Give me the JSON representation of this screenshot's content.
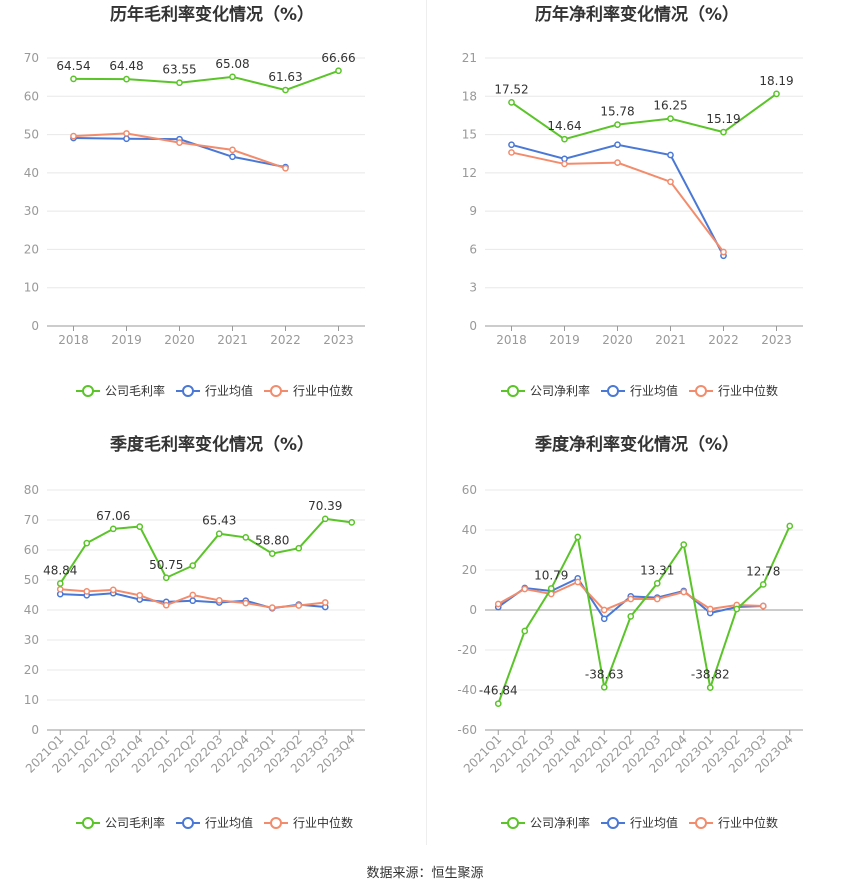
{
  "colors": {
    "company": "#5ac429",
    "industry_avg": "#4a78d6",
    "industry_median": "#f28c6c",
    "grid": "#e8e8e8",
    "axis": "#999999"
  },
  "legend_labels": {
    "company_gross": "公司毛利率",
    "company_net": "公司净利率",
    "industry_avg": "行业均值",
    "industry_median": "行业中位数"
  },
  "source_text": "数据来源：恒生聚源",
  "chart_data": [
    {
      "type": "line",
      "title": "历年毛利率变化情况（%）",
      "x": [
        "2018",
        "2019",
        "2020",
        "2021",
        "2022",
        "2023"
      ],
      "ylim": [
        0,
        70
      ],
      "yticks": [
        0,
        10,
        20,
        30,
        40,
        50,
        60,
        70
      ],
      "series": [
        {
          "name": "公司毛利率",
          "values": [
            64.54,
            64.48,
            63.55,
            65.08,
            61.63,
            66.66
          ],
          "labeled": true
        },
        {
          "name": "行业均值",
          "values": [
            49.1,
            48.9,
            48.8,
            44.2,
            41.5,
            null
          ]
        },
        {
          "name": "行业中位数",
          "values": [
            49.6,
            50.3,
            47.9,
            46.0,
            41.2,
            null
          ]
        }
      ],
      "legend": "bottom",
      "grid": true
    },
    {
      "type": "line",
      "title": "历年净利率变化情况（%）",
      "x": [
        "2018",
        "2019",
        "2020",
        "2021",
        "2022",
        "2023"
      ],
      "ylim": [
        0,
        21
      ],
      "yticks": [
        0,
        3,
        6,
        9,
        12,
        15,
        18,
        21
      ],
      "series": [
        {
          "name": "公司净利率",
          "values": [
            17.52,
            14.64,
            15.78,
            16.25,
            15.19,
            18.19
          ],
          "labeled": true
        },
        {
          "name": "行业均值",
          "values": [
            14.2,
            13.1,
            14.2,
            13.4,
            5.5,
            null
          ]
        },
        {
          "name": "行业中位数",
          "values": [
            13.6,
            12.7,
            12.8,
            11.3,
            5.8,
            null
          ]
        }
      ],
      "legend": "bottom",
      "grid": true
    },
    {
      "type": "line",
      "title": "季度毛利率变化情况（%）",
      "x": [
        "2021Q1",
        "2021Q2",
        "2021Q3",
        "2021Q4",
        "2022Q1",
        "2022Q2",
        "2022Q3",
        "2022Q4",
        "2023Q1",
        "2023Q2",
        "2023Q3",
        "2023Q4"
      ],
      "ylim": [
        0,
        80
      ],
      "yticks": [
        0,
        10,
        20,
        30,
        40,
        50,
        60,
        70,
        80
      ],
      "series": [
        {
          "name": "公司毛利率",
          "values": [
            48.84,
            62.3,
            67.06,
            67.8,
            50.75,
            54.8,
            65.43,
            64.2,
            58.8,
            60.6,
            70.39,
            69.2
          ],
          "labels": [
            "48.84",
            null,
            "67.06",
            null,
            "50.75",
            null,
            "65.43",
            null,
            "58.80",
            null,
            "70.39",
            null
          ]
        },
        {
          "name": "行业均值",
          "values": [
            45.3,
            44.9,
            45.6,
            43.5,
            42.7,
            43.1,
            42.5,
            43.1,
            40.6,
            41.8,
            41.0,
            null
          ]
        },
        {
          "name": "行业中位数",
          "values": [
            46.9,
            46.2,
            46.7,
            44.9,
            41.6,
            45.0,
            43.2,
            42.3,
            40.8,
            41.5,
            42.5,
            null
          ]
        }
      ],
      "legend": "bottom",
      "grid": true
    },
    {
      "type": "line",
      "title": "季度净利率变化情况（%）",
      "x": [
        "2021Q1",
        "2021Q2",
        "2021Q3",
        "2021Q4",
        "2022Q1",
        "2022Q2",
        "2022Q3",
        "2022Q4",
        "2023Q1",
        "2023Q2",
        "2023Q3",
        "2023Q4"
      ],
      "ylim": [
        -60,
        60
      ],
      "yticks": [
        -60,
        -40,
        -20,
        0,
        20,
        40,
        60
      ],
      "series": [
        {
          "name": "公司净利率",
          "values": [
            -46.84,
            -10.5,
            10.79,
            36.5,
            -38.63,
            -3.2,
            13.31,
            32.7,
            -38.82,
            0.5,
            12.78,
            42.0
          ],
          "labels": [
            "-46.84",
            null,
            "10.79",
            null,
            "-38.63",
            null,
            "13.31",
            null,
            "-38.82",
            null,
            "12.78",
            null
          ]
        },
        {
          "name": "行业均值",
          "values": [
            1.5,
            11.0,
            9.5,
            15.8,
            -4.4,
            6.8,
            6.2,
            9.5,
            -1.5,
            1.5,
            2.0,
            null
          ]
        },
        {
          "name": "行业中位数",
          "values": [
            3.0,
            10.5,
            8.0,
            14.0,
            0.0,
            5.5,
            5.5,
            9.0,
            0.5,
            2.5,
            2.0,
            null
          ]
        }
      ],
      "legend": "bottom",
      "grid": true
    }
  ]
}
